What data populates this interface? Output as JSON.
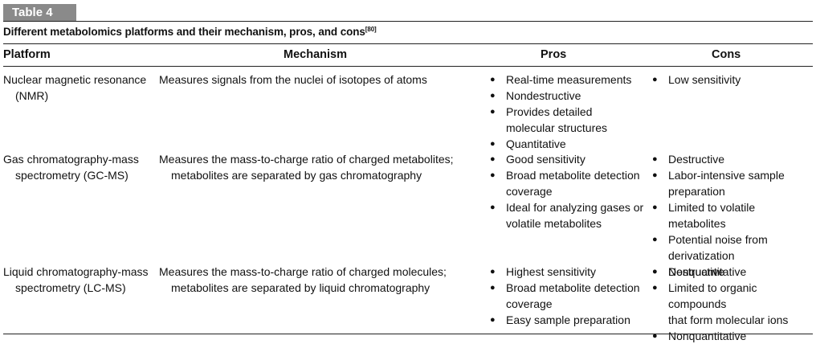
{
  "table": {
    "label": "Table 4",
    "caption": "Different metabolomics platforms and their mechanism, pros, and cons",
    "caption_ref": "[80]",
    "headers": [
      "Platform",
      "Mechanism",
      "Pros",
      "Cons"
    ],
    "bullet": "●",
    "rows": [
      {
        "platform": [
          "Nuclear magnetic resonance",
          "(NMR)"
        ],
        "mechanism": [
          "Measures signals from the nuclei of isotopes of atoms"
        ],
        "pros": [
          [
            "Real-time measurements"
          ],
          [
            "Nondestructive"
          ],
          [
            "Provides detailed",
            "molecular structures"
          ],
          [
            "Quantitative"
          ]
        ],
        "cons": [
          [
            "Low sensitivity"
          ]
        ]
      },
      {
        "platform": [
          "Gas chromatography-mass",
          "spectrometry (GC-MS)"
        ],
        "mechanism": [
          "Measures the mass-to-charge ratio of charged metabolites;",
          "metabolites are separated by gas chromatography"
        ],
        "pros": [
          [
            "Good sensitivity"
          ],
          [
            "Broad metabolite detection",
            "coverage"
          ],
          [
            "Ideal for analyzing gases or",
            "volatile metabolites"
          ]
        ],
        "cons": [
          [
            "Destructive"
          ],
          [
            "Labor-intensive sample",
            "preparation"
          ],
          [
            "Limited to volatile metabolites"
          ],
          [
            "Potential noise from",
            "derivatization"
          ],
          [
            "Nonquantitative"
          ]
        ]
      },
      {
        "platform": [
          "Liquid chromatography-mass",
          "spectrometry (LC-MS)"
        ],
        "mechanism": [
          "Measures the mass-to-charge ratio of charged molecules;",
          "metabolites are separated by liquid chromatography"
        ],
        "pros": [
          [
            "Highest sensitivity"
          ],
          [
            "Broad metabolite detection",
            "coverage"
          ],
          [
            "Easy sample preparation"
          ]
        ],
        "cons": [
          [
            "Destructive"
          ],
          [
            "Limited to organic compounds",
            "that form molecular ions"
          ],
          [
            "Nonquantitative"
          ]
        ]
      }
    ]
  }
}
